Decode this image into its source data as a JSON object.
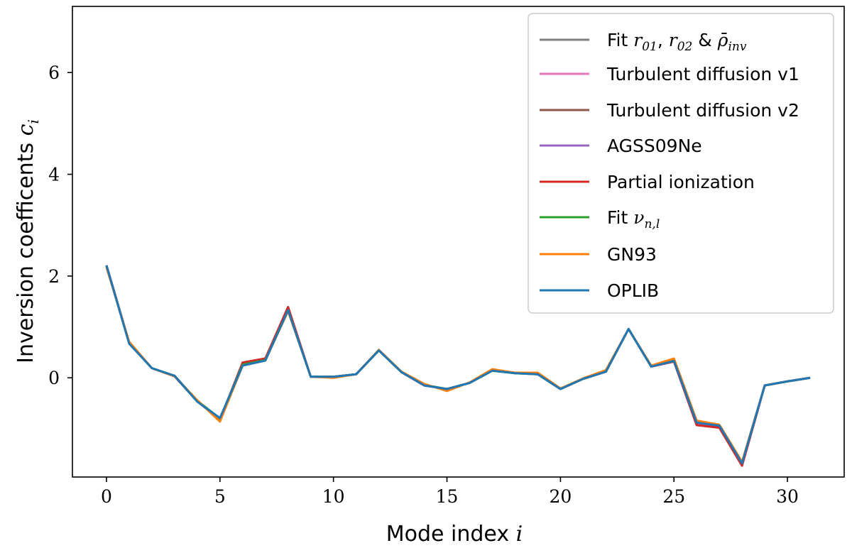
{
  "chart_data": {
    "type": "line",
    "xlabel": "Mode index",
    "xlabel_var": "i",
    "ylabel": "Inversion coefficents",
    "ylabel_var": "c",
    "ylabel_sub": "i",
    "xlim": [
      -1.5,
      32.5
    ],
    "ylim": [
      -1.95,
      7.3
    ],
    "xticks": [
      0,
      5,
      10,
      15,
      20,
      25,
      30
    ],
    "yticks": [
      0,
      2,
      4,
      6
    ],
    "grid": false,
    "legend_position": "top-right",
    "x": [
      0,
      1,
      2,
      3,
      4,
      5,
      6,
      7,
      8,
      9,
      10,
      11,
      12,
      13,
      14,
      15,
      16,
      17,
      18,
      19,
      20,
      21,
      22,
      23,
      24,
      25,
      26,
      27,
      28,
      29,
      30,
      31
    ],
    "series": [
      {
        "name": "Fit r01, r02 & ρ̄inv",
        "color": "#7f7f7f",
        "values": [
          2.2,
          0.68,
          0.19,
          0.04,
          -0.46,
          -0.82,
          0.27,
          0.36,
          1.36,
          0.02,
          0.02,
          0.07,
          0.54,
          0.11,
          -0.15,
          -0.22,
          -0.1,
          0.14,
          0.09,
          0.07,
          -0.22,
          -0.02,
          0.12,
          0.96,
          0.22,
          0.33,
          -0.9,
          -0.95,
          -1.7,
          -0.15,
          -0.07,
          0.0
        ]
      },
      {
        "name": "Turbulent diffusion v1",
        "color": "#e377c2",
        "values": [
          2.21,
          0.69,
          0.19,
          0.04,
          -0.46,
          -0.82,
          0.29,
          0.37,
          1.38,
          0.02,
          0.02,
          0.07,
          0.54,
          0.11,
          -0.15,
          -0.22,
          -0.1,
          0.15,
          0.1,
          0.07,
          -0.22,
          -0.02,
          0.12,
          0.96,
          0.22,
          0.33,
          -0.91,
          -0.96,
          -1.71,
          -0.15,
          -0.07,
          0.0
        ]
      },
      {
        "name": "Turbulent diffusion v2",
        "color": "#8c564b",
        "values": [
          2.21,
          0.69,
          0.19,
          0.03,
          -0.46,
          -0.83,
          0.3,
          0.38,
          1.39,
          0.02,
          0.02,
          0.07,
          0.54,
          0.11,
          -0.15,
          -0.22,
          -0.1,
          0.15,
          0.1,
          0.07,
          -0.22,
          -0.02,
          0.12,
          0.96,
          0.22,
          0.32,
          -0.93,
          -0.98,
          -1.73,
          -0.15,
          -0.07,
          0.0
        ]
      },
      {
        "name": "AGSS09Ne",
        "color": "#9467bd",
        "values": [
          2.21,
          0.69,
          0.19,
          0.03,
          -0.46,
          -0.82,
          0.29,
          0.37,
          1.38,
          0.02,
          0.02,
          0.07,
          0.54,
          0.11,
          -0.15,
          -0.22,
          -0.1,
          0.15,
          0.1,
          0.07,
          -0.22,
          -0.02,
          0.12,
          0.96,
          0.22,
          0.32,
          -0.92,
          -0.97,
          -1.72,
          -0.15,
          -0.07,
          0.0
        ]
      },
      {
        "name": "Partial ionization",
        "color": "#d62728",
        "values": [
          2.21,
          0.69,
          0.19,
          0.03,
          -0.46,
          -0.82,
          0.3,
          0.38,
          1.39,
          0.02,
          0.02,
          0.07,
          0.54,
          0.11,
          -0.15,
          -0.22,
          -0.1,
          0.15,
          0.1,
          0.07,
          -0.22,
          -0.02,
          0.12,
          0.96,
          0.22,
          0.32,
          -0.93,
          -0.98,
          -1.72,
          -0.15,
          -0.07,
          0.0
        ]
      },
      {
        "name": "Fit νn,l",
        "color": "#2ca02c",
        "values": [
          2.2,
          0.68,
          0.19,
          0.04,
          -0.45,
          -0.8,
          0.26,
          0.35,
          1.33,
          0.02,
          0.02,
          0.07,
          0.54,
          0.11,
          -0.14,
          -0.22,
          -0.1,
          0.14,
          0.09,
          0.07,
          -0.22,
          -0.02,
          0.12,
          0.96,
          0.22,
          0.34,
          -0.87,
          -0.93,
          -1.66,
          -0.15,
          -0.07,
          0.0
        ]
      },
      {
        "name": "GN93",
        "color": "#ff7f0e",
        "values": [
          2.17,
          0.71,
          0.19,
          0.03,
          -0.44,
          -0.86,
          0.24,
          0.34,
          1.31,
          0.02,
          0.0,
          0.07,
          0.55,
          0.12,
          -0.12,
          -0.26,
          -0.09,
          0.17,
          0.1,
          0.1,
          -0.21,
          -0.01,
          0.15,
          0.96,
          0.24,
          0.38,
          -0.84,
          -0.92,
          -1.65,
          -0.15,
          -0.07,
          0.0
        ]
      },
      {
        "name": "OPLIB",
        "color": "#1f77b4",
        "values": [
          2.21,
          0.67,
          0.19,
          0.04,
          -0.47,
          -0.79,
          0.24,
          0.34,
          1.33,
          0.02,
          0.02,
          0.07,
          0.54,
          0.11,
          -0.15,
          -0.22,
          -0.1,
          0.14,
          0.09,
          0.07,
          -0.22,
          -0.02,
          0.12,
          0.96,
          0.22,
          0.33,
          -0.88,
          -0.94,
          -1.68,
          -0.15,
          -0.07,
          0.0
        ]
      }
    ]
  },
  "legend": {
    "items": [
      {
        "text": "Fit ",
        "math": "r",
        "sub": "01",
        "text2": ", ",
        "math2": "r",
        "sub2": "02",
        "text3": " & ",
        "math3": "ρ̄",
        "sub3": "inv"
      },
      {
        "text": "Turbulent diffusion v1"
      },
      {
        "text": "Turbulent diffusion v2"
      },
      {
        "text": "AGSS09Ne"
      },
      {
        "text": "Partial ionization"
      },
      {
        "text": "Fit ",
        "math": "ν",
        "sub": "n,l"
      },
      {
        "text": "GN93"
      },
      {
        "text": "OPLIB"
      }
    ]
  }
}
